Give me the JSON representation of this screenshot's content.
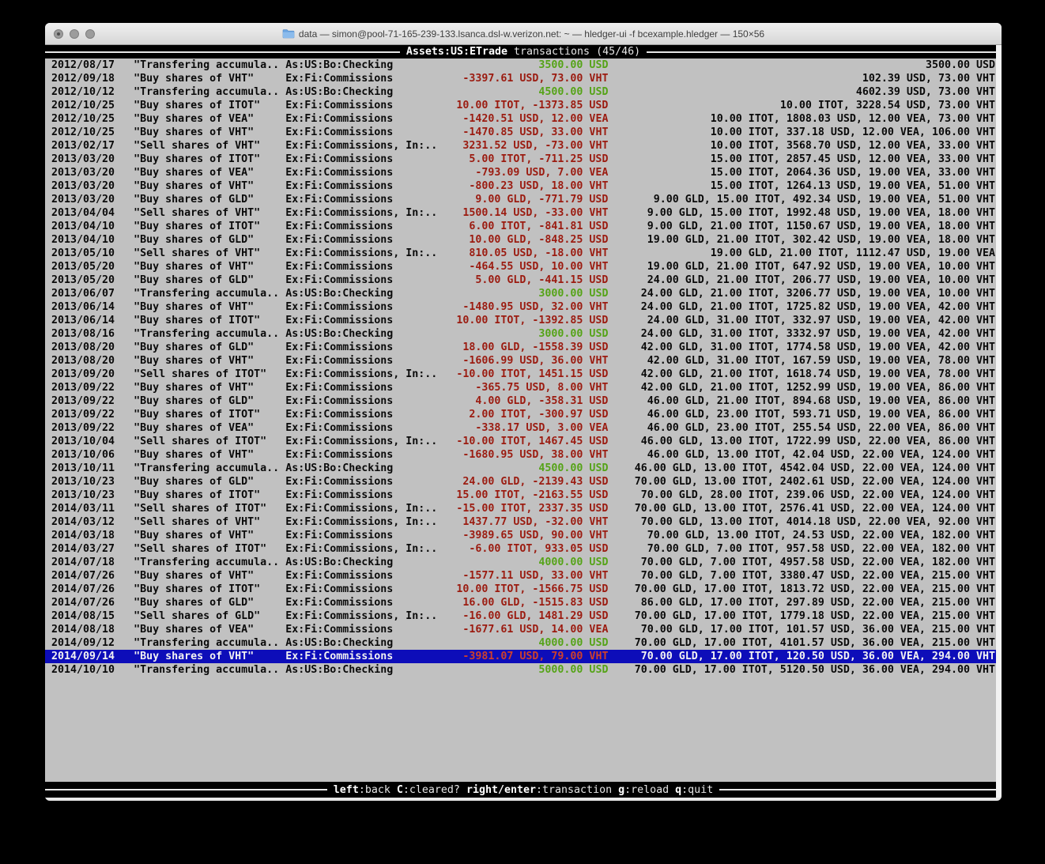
{
  "window": {
    "title": "data — simon@pool-71-165-239-133.lsanca.dsl-w.verizon.net: ~ — hledger-ui -f bcexample.hledger — 150×56"
  },
  "header": {
    "account": "Assets:US:ETrade",
    "subtitle": "transactions (45/46)"
  },
  "footer": {
    "keys": [
      {
        "key": "left",
        "desc": ":back"
      },
      {
        "key": "C",
        "desc": ":cleared?"
      },
      {
        "key": "right/enter",
        "desc": ":transaction"
      },
      {
        "key": "g",
        "desc": ":reload"
      },
      {
        "key": "q",
        "desc": ":quit"
      }
    ]
  },
  "colors": {
    "terminal_bg": "#C1C1C1",
    "text": "#0A0A0A",
    "negative": "#9B1B10",
    "positive": "#55A317",
    "selection_bg": "#0D0DB9",
    "selection_text": "#F2F2F2",
    "selection_negative": "#CE402C",
    "bar_bg": "#000000",
    "bar_text": "#E6E6E6",
    "rule": "#E6E6E6",
    "scrollbar": "#F2F2F2",
    "titlebar_text": "#3E3E3E",
    "frame": "#E8E8E8"
  },
  "transactions": [
    {
      "date": "2012/08/17",
      "description": "\"Transfering accumula..",
      "accounts": "As:US:Bo:Checking",
      "change": "3500.00 USD",
      "change_type": "positive",
      "balance": "3500.00 USD",
      "selected": false
    },
    {
      "date": "2012/09/18",
      "description": "\"Buy shares of VHT\"",
      "accounts": "Ex:Fi:Commissions",
      "change": "-3397.61 USD, 73.00 VHT",
      "change_type": "negative",
      "balance": "102.39 USD, 73.00 VHT",
      "selected": false
    },
    {
      "date": "2012/10/12",
      "description": "\"Transfering accumula..",
      "accounts": "As:US:Bo:Checking",
      "change": "4500.00 USD",
      "change_type": "positive",
      "balance": "4602.39 USD, 73.00 VHT",
      "selected": false
    },
    {
      "date": "2012/10/25",
      "description": "\"Buy shares of ITOT\"",
      "accounts": "Ex:Fi:Commissions",
      "change": "10.00 ITOT, -1373.85 USD",
      "change_type": "negative",
      "balance": "10.00 ITOT, 3228.54 USD, 73.00 VHT",
      "selected": false
    },
    {
      "date": "2012/10/25",
      "description": "\"Buy shares of VEA\"",
      "accounts": "Ex:Fi:Commissions",
      "change": "-1420.51 USD, 12.00 VEA",
      "change_type": "negative",
      "balance": "10.00 ITOT, 1808.03 USD, 12.00 VEA, 73.00 VHT",
      "selected": false
    },
    {
      "date": "2012/10/25",
      "description": "\"Buy shares of VHT\"",
      "accounts": "Ex:Fi:Commissions",
      "change": "-1470.85 USD, 33.00 VHT",
      "change_type": "negative",
      "balance": "10.00 ITOT, 337.18 USD, 12.00 VEA, 106.00 VHT",
      "selected": false
    },
    {
      "date": "2013/02/17",
      "description": "\"Sell shares of VHT\"",
      "accounts": "Ex:Fi:Commissions, In:..",
      "change": "3231.52 USD, -73.00 VHT",
      "change_type": "negative",
      "balance": "10.00 ITOT, 3568.70 USD, 12.00 VEA, 33.00 VHT",
      "selected": false
    },
    {
      "date": "2013/03/20",
      "description": "\"Buy shares of ITOT\"",
      "accounts": "Ex:Fi:Commissions",
      "change": "5.00 ITOT, -711.25 USD",
      "change_type": "negative",
      "balance": "15.00 ITOT, 2857.45 USD, 12.00 VEA, 33.00 VHT",
      "selected": false
    },
    {
      "date": "2013/03/20",
      "description": "\"Buy shares of VEA\"",
      "accounts": "Ex:Fi:Commissions",
      "change": "-793.09 USD, 7.00 VEA",
      "change_type": "negative",
      "balance": "15.00 ITOT, 2064.36 USD, 19.00 VEA, 33.00 VHT",
      "selected": false
    },
    {
      "date": "2013/03/20",
      "description": "\"Buy shares of VHT\"",
      "accounts": "Ex:Fi:Commissions",
      "change": "-800.23 USD, 18.00 VHT",
      "change_type": "negative",
      "balance": "15.00 ITOT, 1264.13 USD, 19.00 VEA, 51.00 VHT",
      "selected": false
    },
    {
      "date": "2013/03/20",
      "description": "\"Buy shares of GLD\"",
      "accounts": "Ex:Fi:Commissions",
      "change": "9.00 GLD, -771.79 USD",
      "change_type": "negative",
      "balance": "9.00 GLD, 15.00 ITOT, 492.34 USD, 19.00 VEA, 51.00 VHT",
      "selected": false
    },
    {
      "date": "2013/04/04",
      "description": "\"Sell shares of VHT\"",
      "accounts": "Ex:Fi:Commissions, In:..",
      "change": "1500.14 USD, -33.00 VHT",
      "change_type": "negative",
      "balance": "9.00 GLD, 15.00 ITOT, 1992.48 USD, 19.00 VEA, 18.00 VHT",
      "selected": false
    },
    {
      "date": "2013/04/10",
      "description": "\"Buy shares of ITOT\"",
      "accounts": "Ex:Fi:Commissions",
      "change": "6.00 ITOT, -841.81 USD",
      "change_type": "negative",
      "balance": "9.00 GLD, 21.00 ITOT, 1150.67 USD, 19.00 VEA, 18.00 VHT",
      "selected": false
    },
    {
      "date": "2013/04/10",
      "description": "\"Buy shares of GLD\"",
      "accounts": "Ex:Fi:Commissions",
      "change": "10.00 GLD, -848.25 USD",
      "change_type": "negative",
      "balance": "19.00 GLD, 21.00 ITOT, 302.42 USD, 19.00 VEA, 18.00 VHT",
      "selected": false
    },
    {
      "date": "2013/05/10",
      "description": "\"Sell shares of VHT\"",
      "accounts": "Ex:Fi:Commissions, In:..",
      "change": "810.05 USD, -18.00 VHT",
      "change_type": "negative",
      "balance": "19.00 GLD, 21.00 ITOT, 1112.47 USD, 19.00 VEA",
      "selected": false
    },
    {
      "date": "2013/05/20",
      "description": "\"Buy shares of VHT\"",
      "accounts": "Ex:Fi:Commissions",
      "change": "-464.55 USD, 10.00 VHT",
      "change_type": "negative",
      "balance": "19.00 GLD, 21.00 ITOT, 647.92 USD, 19.00 VEA, 10.00 VHT",
      "selected": false
    },
    {
      "date": "2013/05/20",
      "description": "\"Buy shares of GLD\"",
      "accounts": "Ex:Fi:Commissions",
      "change": "5.00 GLD, -441.15 USD",
      "change_type": "negative",
      "balance": "24.00 GLD, 21.00 ITOT, 206.77 USD, 19.00 VEA, 10.00 VHT",
      "selected": false
    },
    {
      "date": "2013/06/07",
      "description": "\"Transfering accumula..",
      "accounts": "As:US:Bo:Checking",
      "change": "3000.00 USD",
      "change_type": "positive",
      "balance": "24.00 GLD, 21.00 ITOT, 3206.77 USD, 19.00 VEA, 10.00 VHT",
      "selected": false
    },
    {
      "date": "2013/06/14",
      "description": "\"Buy shares of VHT\"",
      "accounts": "Ex:Fi:Commissions",
      "change": "-1480.95 USD, 32.00 VHT",
      "change_type": "negative",
      "balance": "24.00 GLD, 21.00 ITOT, 1725.82 USD, 19.00 VEA, 42.00 VHT",
      "selected": false
    },
    {
      "date": "2013/06/14",
      "description": "\"Buy shares of ITOT\"",
      "accounts": "Ex:Fi:Commissions",
      "change": "10.00 ITOT, -1392.85 USD",
      "change_type": "negative",
      "balance": "24.00 GLD, 31.00 ITOT, 332.97 USD, 19.00 VEA, 42.00 VHT",
      "selected": false
    },
    {
      "date": "2013/08/16",
      "description": "\"Transfering accumula..",
      "accounts": "As:US:Bo:Checking",
      "change": "3000.00 USD",
      "change_type": "positive",
      "balance": "24.00 GLD, 31.00 ITOT, 3332.97 USD, 19.00 VEA, 42.00 VHT",
      "selected": false
    },
    {
      "date": "2013/08/20",
      "description": "\"Buy shares of GLD\"",
      "accounts": "Ex:Fi:Commissions",
      "change": "18.00 GLD, -1558.39 USD",
      "change_type": "negative",
      "balance": "42.00 GLD, 31.00 ITOT, 1774.58 USD, 19.00 VEA, 42.00 VHT",
      "selected": false
    },
    {
      "date": "2013/08/20",
      "description": "\"Buy shares of VHT\"",
      "accounts": "Ex:Fi:Commissions",
      "change": "-1606.99 USD, 36.00 VHT",
      "change_type": "negative",
      "balance": "42.00 GLD, 31.00 ITOT, 167.59 USD, 19.00 VEA, 78.00 VHT",
      "selected": false
    },
    {
      "date": "2013/09/20",
      "description": "\"Sell shares of ITOT\"",
      "accounts": "Ex:Fi:Commissions, In:..",
      "change": "-10.00 ITOT, 1451.15 USD",
      "change_type": "negative",
      "balance": "42.00 GLD, 21.00 ITOT, 1618.74 USD, 19.00 VEA, 78.00 VHT",
      "selected": false
    },
    {
      "date": "2013/09/22",
      "description": "\"Buy shares of VHT\"",
      "accounts": "Ex:Fi:Commissions",
      "change": "-365.75 USD, 8.00 VHT",
      "change_type": "negative",
      "balance": "42.00 GLD, 21.00 ITOT, 1252.99 USD, 19.00 VEA, 86.00 VHT",
      "selected": false
    },
    {
      "date": "2013/09/22",
      "description": "\"Buy shares of GLD\"",
      "accounts": "Ex:Fi:Commissions",
      "change": "4.00 GLD, -358.31 USD",
      "change_type": "negative",
      "balance": "46.00 GLD, 21.00 ITOT, 894.68 USD, 19.00 VEA, 86.00 VHT",
      "selected": false
    },
    {
      "date": "2013/09/22",
      "description": "\"Buy shares of ITOT\"",
      "accounts": "Ex:Fi:Commissions",
      "change": "2.00 ITOT, -300.97 USD",
      "change_type": "negative",
      "balance": "46.00 GLD, 23.00 ITOT, 593.71 USD, 19.00 VEA, 86.00 VHT",
      "selected": false
    },
    {
      "date": "2013/09/22",
      "description": "\"Buy shares of VEA\"",
      "accounts": "Ex:Fi:Commissions",
      "change": "-338.17 USD, 3.00 VEA",
      "change_type": "negative",
      "balance": "46.00 GLD, 23.00 ITOT, 255.54 USD, 22.00 VEA, 86.00 VHT",
      "selected": false
    },
    {
      "date": "2013/10/04",
      "description": "\"Sell shares of ITOT\"",
      "accounts": "Ex:Fi:Commissions, In:..",
      "change": "-10.00 ITOT, 1467.45 USD",
      "change_type": "negative",
      "balance": "46.00 GLD, 13.00 ITOT, 1722.99 USD, 22.00 VEA, 86.00 VHT",
      "selected": false
    },
    {
      "date": "2013/10/06",
      "description": "\"Buy shares of VHT\"",
      "accounts": "Ex:Fi:Commissions",
      "change": "-1680.95 USD, 38.00 VHT",
      "change_type": "negative",
      "balance": "46.00 GLD, 13.00 ITOT, 42.04 USD, 22.00 VEA, 124.00 VHT",
      "selected": false
    },
    {
      "date": "2013/10/11",
      "description": "\"Transfering accumula..",
      "accounts": "As:US:Bo:Checking",
      "change": "4500.00 USD",
      "change_type": "positive",
      "balance": "46.00 GLD, 13.00 ITOT, 4542.04 USD, 22.00 VEA, 124.00 VHT",
      "selected": false
    },
    {
      "date": "2013/10/23",
      "description": "\"Buy shares of GLD\"",
      "accounts": "Ex:Fi:Commissions",
      "change": "24.00 GLD, -2139.43 USD",
      "change_type": "negative",
      "balance": "70.00 GLD, 13.00 ITOT, 2402.61 USD, 22.00 VEA, 124.00 VHT",
      "selected": false
    },
    {
      "date": "2013/10/23",
      "description": "\"Buy shares of ITOT\"",
      "accounts": "Ex:Fi:Commissions",
      "change": "15.00 ITOT, -2163.55 USD",
      "change_type": "negative",
      "balance": "70.00 GLD, 28.00 ITOT, 239.06 USD, 22.00 VEA, 124.00 VHT",
      "selected": false
    },
    {
      "date": "2014/03/11",
      "description": "\"Sell shares of ITOT\"",
      "accounts": "Ex:Fi:Commissions, In:..",
      "change": "-15.00 ITOT, 2337.35 USD",
      "change_type": "negative",
      "balance": "70.00 GLD, 13.00 ITOT, 2576.41 USD, 22.00 VEA, 124.00 VHT",
      "selected": false
    },
    {
      "date": "2014/03/12",
      "description": "\"Sell shares of VHT\"",
      "accounts": "Ex:Fi:Commissions, In:..",
      "change": "1437.77 USD, -32.00 VHT",
      "change_type": "negative",
      "balance": "70.00 GLD, 13.00 ITOT, 4014.18 USD, 22.00 VEA, 92.00 VHT",
      "selected": false
    },
    {
      "date": "2014/03/18",
      "description": "\"Buy shares of VHT\"",
      "accounts": "Ex:Fi:Commissions",
      "change": "-3989.65 USD, 90.00 VHT",
      "change_type": "negative",
      "balance": "70.00 GLD, 13.00 ITOT, 24.53 USD, 22.00 VEA, 182.00 VHT",
      "selected": false
    },
    {
      "date": "2014/03/27",
      "description": "\"Sell shares of ITOT\"",
      "accounts": "Ex:Fi:Commissions, In:..",
      "change": "-6.00 ITOT, 933.05 USD",
      "change_type": "negative",
      "balance": "70.00 GLD, 7.00 ITOT, 957.58 USD, 22.00 VEA, 182.00 VHT",
      "selected": false
    },
    {
      "date": "2014/07/18",
      "description": "\"Transfering accumula..",
      "accounts": "As:US:Bo:Checking",
      "change": "4000.00 USD",
      "change_type": "positive",
      "balance": "70.00 GLD, 7.00 ITOT, 4957.58 USD, 22.00 VEA, 182.00 VHT",
      "selected": false
    },
    {
      "date": "2014/07/26",
      "description": "\"Buy shares of VHT\"",
      "accounts": "Ex:Fi:Commissions",
      "change": "-1577.11 USD, 33.00 VHT",
      "change_type": "negative",
      "balance": "70.00 GLD, 7.00 ITOT, 3380.47 USD, 22.00 VEA, 215.00 VHT",
      "selected": false
    },
    {
      "date": "2014/07/26",
      "description": "\"Buy shares of ITOT\"",
      "accounts": "Ex:Fi:Commissions",
      "change": "10.00 ITOT, -1566.75 USD",
      "change_type": "negative",
      "balance": "70.00 GLD, 17.00 ITOT, 1813.72 USD, 22.00 VEA, 215.00 VHT",
      "selected": false
    },
    {
      "date": "2014/07/26",
      "description": "\"Buy shares of GLD\"",
      "accounts": "Ex:Fi:Commissions",
      "change": "16.00 GLD, -1515.83 USD",
      "change_type": "negative",
      "balance": "86.00 GLD, 17.00 ITOT, 297.89 USD, 22.00 VEA, 215.00 VHT",
      "selected": false
    },
    {
      "date": "2014/08/15",
      "description": "\"Sell shares of GLD\"",
      "accounts": "Ex:Fi:Commissions, In:..",
      "change": "-16.00 GLD, 1481.29 USD",
      "change_type": "negative",
      "balance": "70.00 GLD, 17.00 ITOT, 1779.18 USD, 22.00 VEA, 215.00 VHT",
      "selected": false
    },
    {
      "date": "2014/08/18",
      "description": "\"Buy shares of VEA\"",
      "accounts": "Ex:Fi:Commissions",
      "change": "-1677.61 USD, 14.00 VEA",
      "change_type": "negative",
      "balance": "70.00 GLD, 17.00 ITOT, 101.57 USD, 36.00 VEA, 215.00 VHT",
      "selected": false
    },
    {
      "date": "2014/09/12",
      "description": "\"Transfering accumula..",
      "accounts": "As:US:Bo:Checking",
      "change": "4000.00 USD",
      "change_type": "positive",
      "balance": "70.00 GLD, 17.00 ITOT, 4101.57 USD, 36.00 VEA, 215.00 VHT",
      "selected": false
    },
    {
      "date": "2014/09/14",
      "description": "\"Buy shares of VHT\"",
      "accounts": "Ex:Fi:Commissions",
      "change": "-3981.07 USD, 79.00 VHT",
      "change_type": "negative",
      "balance": "70.00 GLD, 17.00 ITOT, 120.50 USD, 36.00 VEA, 294.00 VHT",
      "selected": true
    },
    {
      "date": "2014/10/10",
      "description": "\"Transfering accumula..",
      "accounts": "As:US:Bo:Checking",
      "change": "5000.00 USD",
      "change_type": "positive",
      "balance": "70.00 GLD, 17.00 ITOT, 5120.50 USD, 36.00 VEA, 294.00 VHT",
      "selected": false
    }
  ]
}
